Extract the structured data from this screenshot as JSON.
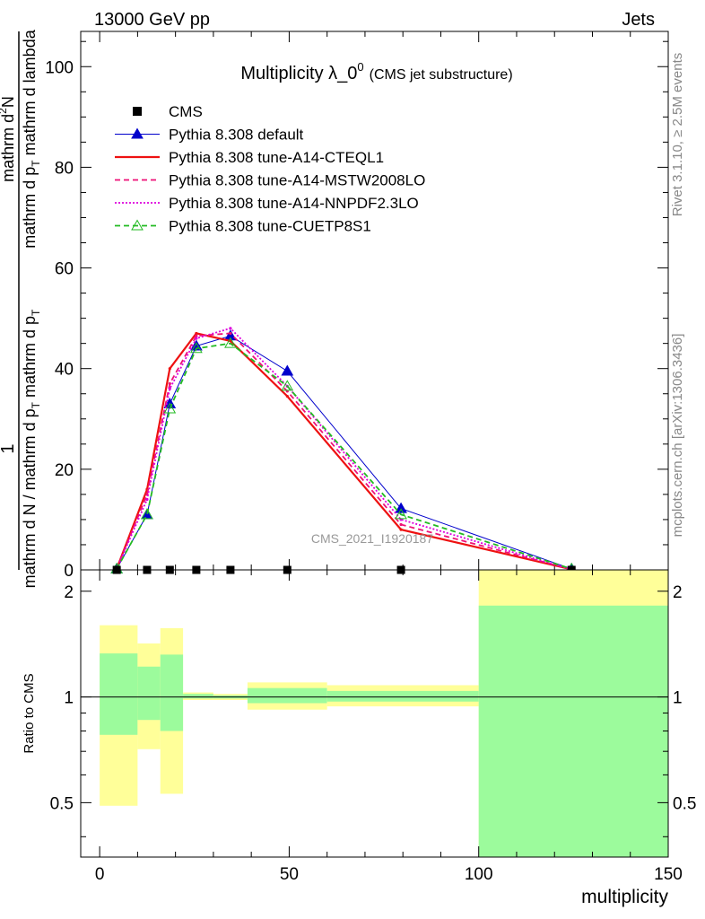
{
  "header": {
    "left": "13000 GeV pp",
    "right": "Jets"
  },
  "side_labels": {
    "rivet": "Rivet 3.1.10, ≥ 2.5M events",
    "mcplots": "mcplots.cern.ch [arXiv:1306.3436]"
  },
  "watermark": "CMS_2021_I1920187",
  "chart_data": [
    {
      "type": "line",
      "title_main": "Multiplicity λ_0",
      "title_sup": "0",
      "title_sub": "(CMS jet substructure)",
      "ylabel_frac_num": "1",
      "ylabel_frac_den": "mathrm d N / mathrm d p",
      "ylabel_frac_den_sub": "T",
      "ylabel_frac_den_tail": " mathrm d p",
      "ylabel_frac_den_tail_sub": "T",
      "ylabel_num2": "mathrm d",
      "ylabel_num2_sup": "2",
      "ylabel_num2_tail": "N",
      "ylabel_den2": "mathrm d p",
      "ylabel_den2_sub": "T",
      "ylabel_den2_tail": " mathrm d lambda",
      "xlim": [
        -5,
        150
      ],
      "ylim": [
        0,
        107
      ],
      "yticks": [
        "0",
        "20",
        "40",
        "60",
        "80",
        "100"
      ],
      "ytick_values": [
        0,
        20,
        40,
        60,
        80,
        100
      ],
      "legend_position": "top-left",
      "x": [
        4.5,
        12.5,
        18.5,
        25.5,
        34.5,
        49.5,
        79.5,
        124.5
      ],
      "cms": {
        "name": "CMS",
        "values": [
          0,
          0,
          0,
          0,
          0,
          0,
          0,
          0
        ],
        "color": "#000000"
      },
      "series": [
        {
          "name": "Pythia 8.308 default",
          "color": "#0000cc",
          "style": "solid",
          "marker": "triangle-filled",
          "values": [
            0.2,
            11.0,
            33.0,
            44.5,
            46.5,
            39.5,
            12.2,
            0.2
          ]
        },
        {
          "name": "Pythia 8.308 tune-A14-CTEQL1",
          "color": "#ee1111",
          "style": "solid-thick",
          "marker": "none",
          "values": [
            0.2,
            16.0,
            40.0,
            47.0,
            45.5,
            34.5,
            8.0,
            0.1
          ]
        },
        {
          "name": "Pythia 8.308 tune-A14-MSTW2008LO",
          "color": "#ee1177",
          "style": "dashed",
          "marker": "none",
          "values": [
            0.2,
            15.0,
            37.0,
            46.5,
            47.0,
            35.5,
            9.0,
            0.1
          ]
        },
        {
          "name": "Pythia 8.308 tune-A14-NNPDF2.3LO",
          "color": "#dd00dd",
          "style": "dotted",
          "marker": "none",
          "values": [
            0.2,
            14.0,
            36.0,
            46.0,
            48.0,
            36.5,
            10.0,
            0.1
          ]
        },
        {
          "name": "Pythia 8.308 tune-CUETP8S1",
          "color": "#22bb22",
          "style": "dashed",
          "marker": "triangle-open",
          "values": [
            0.2,
            11.0,
            32.0,
            44.0,
            45.0,
            36.5,
            11.0,
            0.2
          ]
        }
      ]
    },
    {
      "type": "area",
      "ylabel": "Ratio to CMS",
      "xlabel": "multiplicity",
      "xlim": [
        -5,
        150
      ],
      "ylim": [
        0.35,
        2.3
      ],
      "xticks": [
        "0",
        "50",
        "100",
        "150"
      ],
      "xtick_values": [
        0,
        50,
        100,
        150
      ],
      "yticks": [
        "0.5",
        "1",
        "2"
      ],
      "ytick_values": [
        0.5,
        1,
        2
      ],
      "bins": [
        {
          "x0": 0,
          "x1": 10,
          "y_lo": 0.49,
          "y_hi": 1.6,
          "g_lo": 0.78,
          "g_hi": 1.33
        },
        {
          "x0": 10,
          "x1": 16,
          "y_lo": 0.71,
          "y_hi": 1.42,
          "g_lo": 0.86,
          "g_hi": 1.22
        },
        {
          "x0": 16,
          "x1": 22,
          "y_lo": 0.53,
          "y_hi": 1.57,
          "g_lo": 0.8,
          "g_hi": 1.32
        },
        {
          "x0": 22,
          "x1": 30,
          "y_lo": 0.98,
          "y_hi": 1.03,
          "g_lo": 0.99,
          "g_hi": 1.02
        },
        {
          "x0": 30,
          "x1": 39,
          "y_lo": 0.98,
          "y_hi": 1.02,
          "g_lo": 0.99,
          "g_hi": 1.01
        },
        {
          "x0": 39,
          "x1": 60,
          "y_lo": 0.92,
          "y_hi": 1.1,
          "g_lo": 0.96,
          "g_hi": 1.06
        },
        {
          "x0": 60,
          "x1": 100,
          "y_lo": 0.94,
          "y_hi": 1.08,
          "g_lo": 0.97,
          "g_hi": 1.04
        },
        {
          "x0": 100,
          "x1": 150,
          "y_lo": 0.35,
          "y_hi": 2.3,
          "g_lo": 0.35,
          "g_hi": 1.82
        }
      ],
      "green_color": "#9cfb9c",
      "yellow_color": "#ffff99"
    }
  ]
}
